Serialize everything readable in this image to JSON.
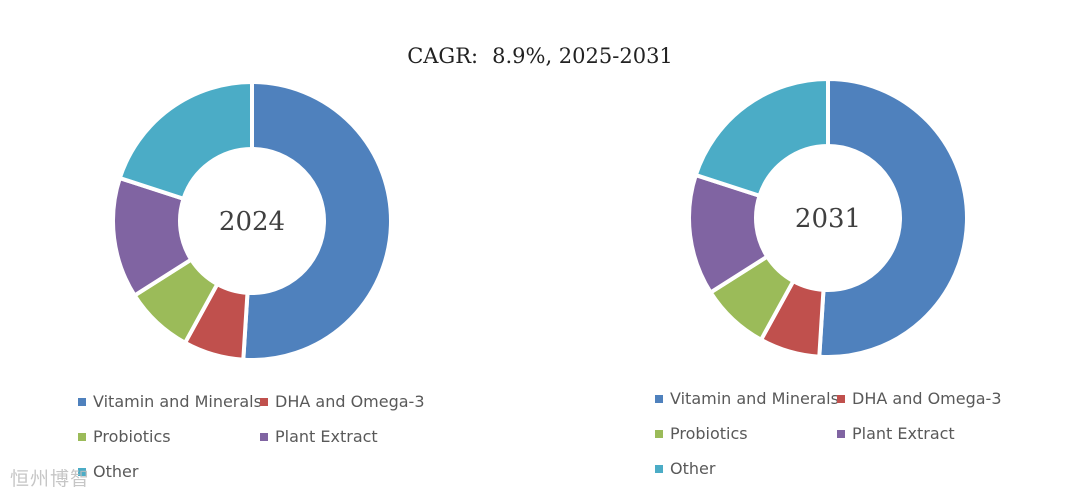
{
  "chart_data": {
    "type": "pie",
    "title": "CAGR:",
    "title_value": "8.9%, 2025-2031",
    "categories": [
      "Vitamin and Minerals",
      "DHA and Omega-3",
      "Probiotics",
      "Plant Extract",
      "Other"
    ],
    "colors": [
      "#4F81BD",
      "#C0504D",
      "#9BBB59",
      "#8064A2",
      "#4BACC6"
    ],
    "series": [
      {
        "name": "2024",
        "values": [
          51,
          7,
          8,
          14,
          20
        ]
      },
      {
        "name": "2031",
        "values": [
          51,
          7,
          8,
          14,
          20
        ]
      }
    ],
    "legend": "bottom"
  },
  "watermark": "恒州博智"
}
